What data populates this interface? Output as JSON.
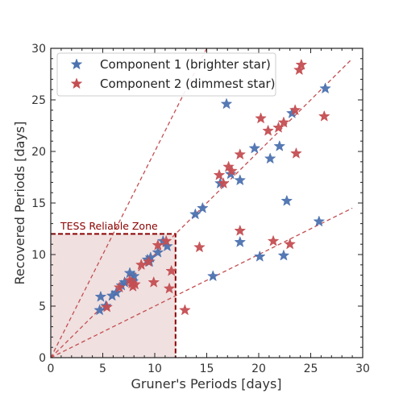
{
  "chart_data": {
    "type": "scatter",
    "title": "",
    "xlabel": "Gruner's Periods [days]",
    "ylabel": "Recovered Periods [days]",
    "xlim": [
      0,
      30
    ],
    "ylim": [
      0,
      30
    ],
    "xticks": [
      0,
      5,
      10,
      15,
      20,
      25,
      30
    ],
    "yticks": [
      0,
      5,
      10,
      15,
      20,
      25,
      30
    ],
    "grid": false,
    "legend_position": "top-left",
    "marker": "star",
    "colors": {
      "series1": "#4c72b0",
      "series2": "#c44e52",
      "zone_fill": "#f0e0e0",
      "zone_border": "#8b0000"
    },
    "reliable_zone": {
      "label": "TESS Reliable Zone",
      "x_max": 12,
      "y_max": 12
    },
    "reference_lines": [
      {
        "slope": 2.0
      },
      {
        "slope": 1.0
      },
      {
        "slope": 0.5
      }
    ],
    "series": [
      {
        "name": "Component 1 (brighter star)",
        "color": "#4c72b0",
        "points": [
          [
            4.7,
            4.6
          ],
          [
            4.8,
            5.9
          ],
          [
            5.3,
            5.0
          ],
          [
            5.9,
            6.0
          ],
          [
            6.3,
            6.3
          ],
          [
            6.8,
            7.0
          ],
          [
            7.1,
            7.3
          ],
          [
            7.6,
            8.2
          ],
          [
            8.0,
            7.9
          ],
          [
            7.9,
            7.4
          ],
          [
            9.3,
            9.5
          ],
          [
            9.5,
            9.3
          ],
          [
            9.6,
            9.7
          ],
          [
            10.3,
            10.2
          ],
          [
            10.8,
            11.3
          ],
          [
            11.2,
            10.8
          ],
          [
            13.9,
            13.9
          ],
          [
            14.6,
            14.5
          ],
          [
            15.6,
            7.9
          ],
          [
            16.3,
            16.9
          ],
          [
            16.9,
            24.6
          ],
          [
            17.3,
            17.8
          ],
          [
            18.2,
            17.2
          ],
          [
            18.2,
            11.2
          ],
          [
            19.6,
            20.3
          ],
          [
            20.1,
            9.8
          ],
          [
            21.1,
            19.3
          ],
          [
            22.0,
            20.5
          ],
          [
            22.4,
            9.9
          ],
          [
            22.7,
            15.2
          ],
          [
            23.2,
            23.7
          ],
          [
            25.8,
            13.2
          ],
          [
            26.4,
            26.1
          ]
        ]
      },
      {
        "name": "Component 2 (dimmest star)",
        "color": "#c44e52",
        "points": [
          [
            5.4,
            4.9
          ],
          [
            6.6,
            6.8
          ],
          [
            7.6,
            7.5
          ],
          [
            7.8,
            7.2
          ],
          [
            8.1,
            7.1
          ],
          [
            7.9,
            6.9
          ],
          [
            8.7,
            9.0
          ],
          [
            9.4,
            9.3
          ],
          [
            9.9,
            7.3
          ],
          [
            10.3,
            10.9
          ],
          [
            11.1,
            11.3
          ],
          [
            11.4,
            6.7
          ],
          [
            11.6,
            8.4
          ],
          [
            12.9,
            4.6
          ],
          [
            14.3,
            10.7
          ],
          [
            16.2,
            17.7
          ],
          [
            16.6,
            16.9
          ],
          [
            17.1,
            18.5
          ],
          [
            17.4,
            18.1
          ],
          [
            18.2,
            19.7
          ],
          [
            18.2,
            12.3
          ],
          [
            20.2,
            23.2
          ],
          [
            20.9,
            22.0
          ],
          [
            21.4,
            11.3
          ],
          [
            21.9,
            22.3
          ],
          [
            22.4,
            22.8
          ],
          [
            23.0,
            11.0
          ],
          [
            23.5,
            24.0
          ],
          [
            23.6,
            19.8
          ],
          [
            23.9,
            27.9
          ],
          [
            24.1,
            28.4
          ],
          [
            26.3,
            23.4
          ]
        ]
      }
    ]
  }
}
